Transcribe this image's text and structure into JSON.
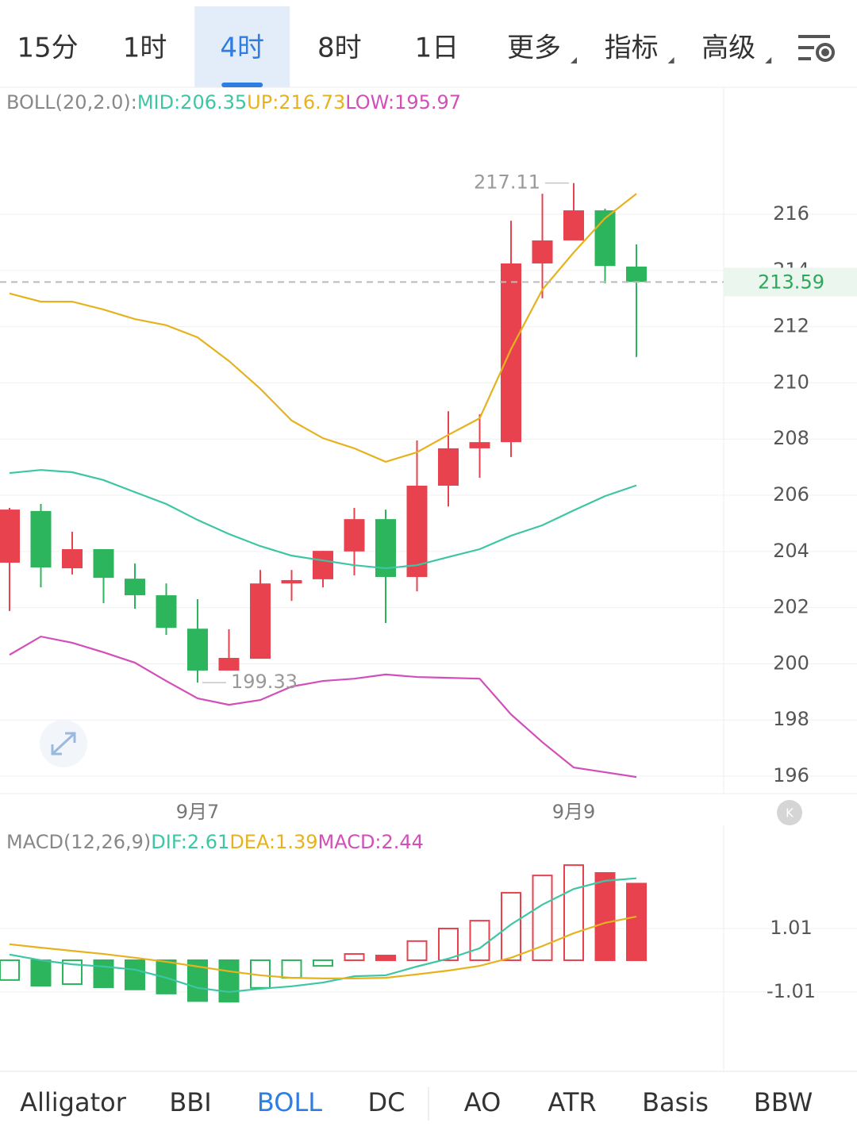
{
  "tabs": [
    "15分",
    "1时",
    "4时",
    "8时",
    "1日",
    "更多",
    "指标",
    "高级"
  ],
  "active_tab": 2,
  "chart_data": [
    {
      "type": "candlestick",
      "legend_title": "BOLL(20,2.0):",
      "categories": [
        null,
        null,
        null,
        null,
        null,
        null,
        "9月7",
        null,
        null,
        null,
        null,
        null,
        null,
        null,
        null,
        null,
        null,
        null,
        "9月9",
        null,
        null
      ],
      "open": [
        203.6,
        205.44,
        203.4,
        204.08,
        203.03,
        202.44,
        201.25,
        199.76,
        200.18,
        202.86,
        203.01,
        204.0,
        205.15,
        203.09,
        206.34,
        207.67,
        207.89,
        214.25,
        215.07,
        216.14,
        214.14
      ],
      "high": [
        205.55,
        205.69,
        204.7,
        204.08,
        203.57,
        202.86,
        202.3,
        201.23,
        203.34,
        203.34,
        204.02,
        205.55,
        205.49,
        207.95,
        208.99,
        208.88,
        215.77,
        216.73,
        217.11,
        216.2,
        214.93
      ],
      "low": [
        201.88,
        202.72,
        203.18,
        202.16,
        201.96,
        201.03,
        199.33,
        199.76,
        200.18,
        202.24,
        202.72,
        203.15,
        201.45,
        202.58,
        205.6,
        206.62,
        207.36,
        213.01,
        215.07,
        213.54,
        210.92
      ],
      "close": [
        205.49,
        203.43,
        204.08,
        203.06,
        202.44,
        201.28,
        199.76,
        200.21,
        202.86,
        202.98,
        204.02,
        205.15,
        203.09,
        206.34,
        207.67,
        207.89,
        214.25,
        215.07,
        216.14,
        214.16,
        213.59
      ],
      "up_color": "#e8424f",
      "down_color": "#2db55d",
      "series": [
        {
          "name": "MID:206.35",
          "color": "#3cc6a4",
          "values": [
            206.79,
            206.9,
            206.82,
            206.54,
            206.11,
            205.69,
            205.12,
            204.62,
            204.19,
            203.85,
            203.68,
            203.51,
            203.4,
            203.51,
            203.8,
            204.08,
            204.56,
            204.93,
            205.46,
            205.97,
            206.35
          ]
        },
        {
          "name": "UP:216.73",
          "color": "#e6b21e",
          "values": [
            213.18,
            212.89,
            212.89,
            212.61,
            212.27,
            212.05,
            211.62,
            210.78,
            209.79,
            208.66,
            208.03,
            207.67,
            207.19,
            207.53,
            208.15,
            208.74,
            211.2,
            213.32,
            214.64,
            215.86,
            216.73
          ]
        },
        {
          "name": "LOW:195.97",
          "color": "#d24fb8",
          "values": [
            200.32,
            200.97,
            200.75,
            200.41,
            200.04,
            199.39,
            198.77,
            198.54,
            198.71,
            199.19,
            199.39,
            199.47,
            199.62,
            199.53,
            199.5,
            199.47,
            198.2,
            197.21,
            196.31,
            196.14,
            195.97
          ]
        }
      ],
      "high_label": 217.11,
      "low_label": 199.33,
      "last_price": 213.59,
      "ylim": [
        195.38,
        220.52
      ],
      "yticks": [
        196,
        198,
        200,
        202,
        204,
        206,
        208,
        210,
        212,
        214,
        216
      ],
      "grid": true
    },
    {
      "type": "macd",
      "legend_title": "MACD(12,26,9)",
      "series": [
        {
          "name": "DIF:2.61",
          "color": "#3cc6a4",
          "values": [
            0.18,
            0,
            -0.13,
            -0.2,
            -0.3,
            -0.56,
            -0.88,
            -1.01,
            -0.91,
            -0.83,
            -0.71,
            -0.51,
            -0.48,
            -0.2,
            0.05,
            0.38,
            1.14,
            1.77,
            2.27,
            2.53,
            2.61
          ]
        },
        {
          "name": "DEA:1.39",
          "color": "#e6b21e",
          "values": [
            0.51,
            0.4,
            0.3,
            0.2,
            0.08,
            -0.05,
            -0.2,
            -0.35,
            -0.48,
            -0.56,
            -0.58,
            -0.58,
            -0.56,
            -0.45,
            -0.33,
            -0.18,
            0.08,
            0.45,
            0.86,
            1.19,
            1.39
          ]
        }
      ],
      "histogram": {
        "name": "MACD:2.44",
        "legend_color": "#d24fb8",
        "up_color": "#e8424f",
        "down_color": "#2db55d",
        "values": [
          -0.63,
          -0.81,
          -0.76,
          -0.86,
          -0.93,
          -1.06,
          -1.3,
          -1.32,
          -0.88,
          -0.56,
          -0.18,
          0.2,
          0.15,
          0.61,
          1.01,
          1.26,
          2.15,
          2.7,
          3.03,
          2.78,
          2.44
        ]
      },
      "ylim": [
        -3.54,
        4.17
      ],
      "yticks": [
        1.01,
        -1.01
      ],
      "grid": true
    }
  ],
  "indicator_tabs": [
    "Alligator",
    "BBI",
    "BOLL",
    "DC",
    "AO",
    "ATR",
    "Basis",
    "BBW"
  ],
  "active_indicator": 2
}
